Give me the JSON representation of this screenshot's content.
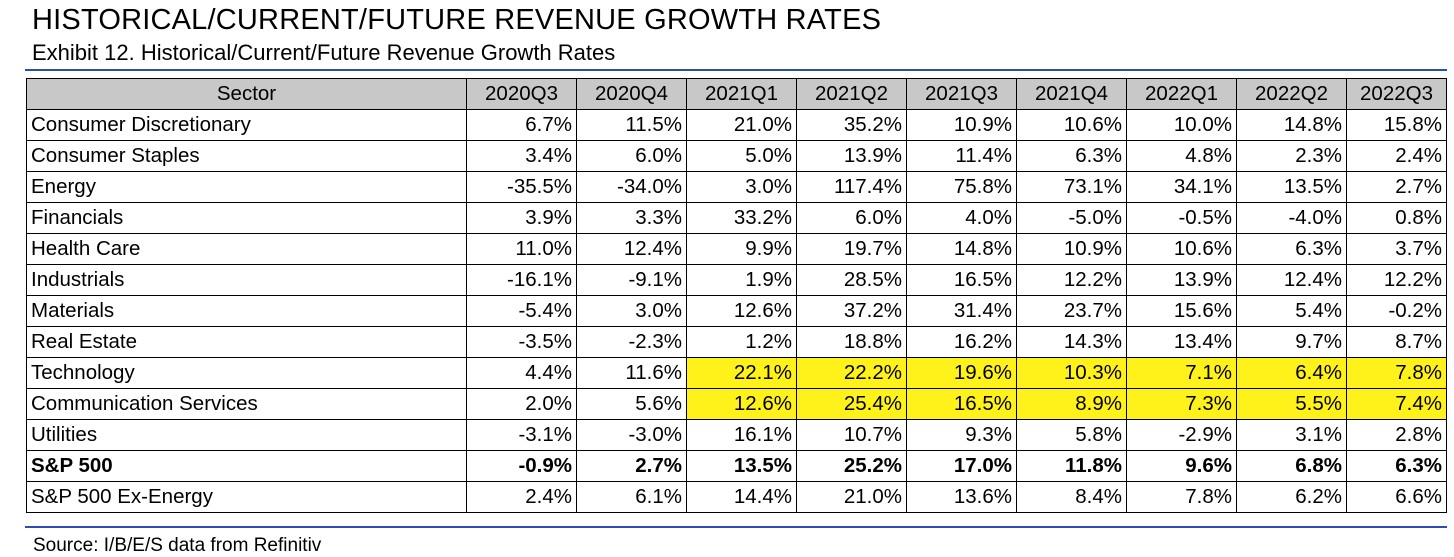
{
  "title": "HISTORICAL/CURRENT/FUTURE REVENUE GROWTH RATES",
  "subtitle": "Exhibit 12. Historical/Current/Future Revenue Growth Rates",
  "source": "Source: I/B/E/S data from Refinitiv",
  "highlight_color": "#fff21a",
  "table": {
    "headers": [
      "Sector",
      "2020Q3",
      "2020Q4",
      "2021Q1",
      "2021Q2",
      "2021Q3",
      "2021Q4",
      "2022Q1",
      "2022Q2",
      "2022Q3"
    ],
    "rows": [
      {
        "sector": "Consumer Discretionary",
        "values": [
          "6.7%",
          "11.5%",
          "21.0%",
          "35.2%",
          "10.9%",
          "10.6%",
          "10.0%",
          "14.8%",
          "15.8%"
        ]
      },
      {
        "sector": "Consumer Staples",
        "values": [
          "3.4%",
          "6.0%",
          "5.0%",
          "13.9%",
          "11.4%",
          "6.3%",
          "4.8%",
          "2.3%",
          "2.4%"
        ]
      },
      {
        "sector": "Energy",
        "values": [
          "-35.5%",
          "-34.0%",
          "3.0%",
          "117.4%",
          "75.8%",
          "73.1%",
          "34.1%",
          "13.5%",
          "2.7%"
        ]
      },
      {
        "sector": "Financials",
        "values": [
          "3.9%",
          "3.3%",
          "33.2%",
          "6.0%",
          "4.0%",
          "-5.0%",
          "-0.5%",
          "-4.0%",
          "0.8%"
        ]
      },
      {
        "sector": "Health Care",
        "values": [
          "11.0%",
          "12.4%",
          "9.9%",
          "19.7%",
          "14.8%",
          "10.9%",
          "10.6%",
          "6.3%",
          "3.7%"
        ]
      },
      {
        "sector": "Industrials",
        "values": [
          "-16.1%",
          "-9.1%",
          "1.9%",
          "28.5%",
          "16.5%",
          "12.2%",
          "13.9%",
          "12.4%",
          "12.2%"
        ]
      },
      {
        "sector": "Materials",
        "values": [
          "-5.4%",
          "3.0%",
          "12.6%",
          "37.2%",
          "31.4%",
          "23.7%",
          "15.6%",
          "5.4%",
          "-0.2%"
        ]
      },
      {
        "sector": "Real Estate",
        "values": [
          "-3.5%",
          "-2.3%",
          "1.2%",
          "18.8%",
          "16.2%",
          "14.3%",
          "13.4%",
          "9.7%",
          "8.7%"
        ]
      },
      {
        "sector": "Technology",
        "highlighted": true,
        "values": [
          "4.4%",
          "11.6%",
          "22.1%",
          "22.2%",
          "19.6%",
          "10.3%",
          "7.1%",
          "6.4%",
          "7.8%"
        ]
      },
      {
        "sector": "Communication Services",
        "highlighted": true,
        "values": [
          "2.0%",
          "5.6%",
          "12.6%",
          "25.4%",
          "16.5%",
          "8.9%",
          "7.3%",
          "5.5%",
          "7.4%"
        ]
      },
      {
        "sector": "Utilities",
        "values": [
          "-3.1%",
          "-3.0%",
          "16.1%",
          "10.7%",
          "9.3%",
          "5.8%",
          "-2.9%",
          "3.1%",
          "2.8%"
        ]
      },
      {
        "sector": "S&P 500",
        "bold": true,
        "values": [
          "-0.9%",
          "2.7%",
          "13.5%",
          "25.2%",
          "17.0%",
          "11.8%",
          "9.6%",
          "6.8%",
          "6.3%"
        ]
      },
      {
        "sector": "S&P 500 Ex-Energy",
        "values": [
          "2.4%",
          "6.1%",
          "14.4%",
          "21.0%",
          "13.6%",
          "8.4%",
          "7.8%",
          "6.2%",
          "6.6%"
        ]
      }
    ]
  }
}
